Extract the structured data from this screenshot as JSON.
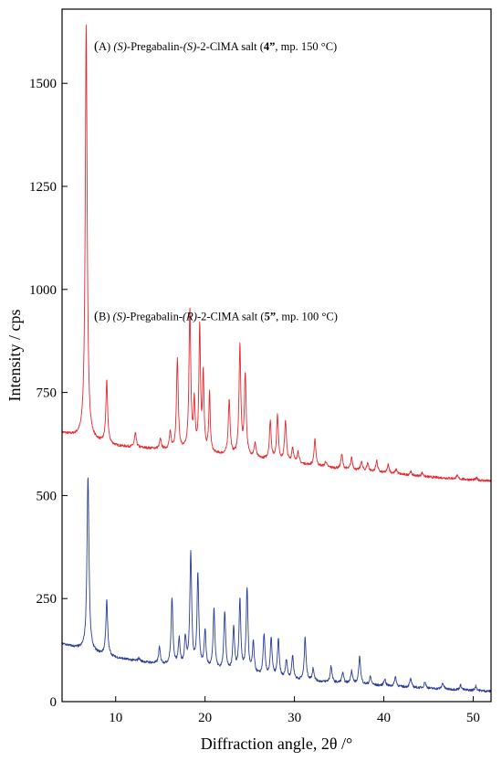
{
  "chart_data": {
    "type": "line",
    "xlabel": "Diffraction angle, 2θ /°",
    "ylabel": "Intensity / cps",
    "xlim": [
      4,
      52
    ],
    "ylim": [
      0,
      1680
    ],
    "x_ticks": [
      10,
      20,
      30,
      40,
      50
    ],
    "y_ticks": [
      0,
      250,
      500,
      750,
      1000,
      1250,
      1500
    ],
    "grid": false,
    "series": [
      {
        "color": "#e8282e",
        "baseline": [
          [
            4,
            652
          ],
          [
            6,
            640
          ],
          [
            8,
            630
          ],
          [
            10,
            620
          ],
          [
            15,
            612
          ],
          [
            20,
            602
          ],
          [
            25,
            592
          ],
          [
            30,
            578
          ],
          [
            35,
            565
          ],
          [
            40,
            555
          ],
          [
            45,
            545
          ],
          [
            50,
            538
          ],
          [
            52,
            535
          ]
        ],
        "peaks": [
          [
            6.7,
            1640,
            0.13
          ],
          [
            9.0,
            775,
            0.12
          ],
          [
            12.2,
            650,
            0.12
          ],
          [
            15.0,
            635,
            0.12
          ],
          [
            16.1,
            650,
            0.12
          ],
          [
            16.9,
            828,
            0.12
          ],
          [
            18.3,
            945,
            0.12
          ],
          [
            18.8,
            718,
            0.1
          ],
          [
            19.4,
            905,
            0.1
          ],
          [
            19.8,
            790,
            0.1
          ],
          [
            20.5,
            745,
            0.1
          ],
          [
            22.7,
            730,
            0.12
          ],
          [
            23.9,
            860,
            0.12
          ],
          [
            24.5,
            790,
            0.12
          ],
          [
            25.6,
            625,
            0.12
          ],
          [
            27.3,
            680,
            0.12
          ],
          [
            28.1,
            692,
            0.12
          ],
          [
            29.0,
            680,
            0.12
          ],
          [
            29.8,
            615,
            0.12
          ],
          [
            30.4,
            605,
            0.12
          ],
          [
            32.3,
            635,
            0.12
          ],
          [
            33.5,
            582,
            0.12
          ],
          [
            35.3,
            600,
            0.12
          ],
          [
            36.4,
            592,
            0.12
          ],
          [
            37.5,
            582,
            0.12
          ],
          [
            38.2,
            578,
            0.12
          ],
          [
            39.2,
            585,
            0.12
          ],
          [
            40.5,
            575,
            0.12
          ],
          [
            41.4,
            563,
            0.12
          ],
          [
            43.0,
            558,
            0.12
          ],
          [
            44.3,
            555,
            0.12
          ],
          [
            48.2,
            548,
            0.12
          ],
          [
            50.4,
            542,
            0.12
          ]
        ]
      },
      {
        "color": "#2a3d9a",
        "baseline": [
          [
            4,
            140
          ],
          [
            6,
            128
          ],
          [
            8,
            116
          ],
          [
            10,
            106
          ],
          [
            15,
            90
          ],
          [
            20,
            78
          ],
          [
            25,
            65
          ],
          [
            30,
            52
          ],
          [
            35,
            45
          ],
          [
            40,
            38
          ],
          [
            45,
            32
          ],
          [
            50,
            27
          ],
          [
            52,
            25
          ]
        ],
        "peaks": [
          [
            6.9,
            547,
            0.13
          ],
          [
            9.0,
            245,
            0.12
          ],
          [
            12.6,
            105,
            0.12
          ],
          [
            14.9,
            130,
            0.12
          ],
          [
            16.3,
            250,
            0.12
          ],
          [
            17.1,
            150,
            0.12
          ],
          [
            17.8,
            150,
            0.12
          ],
          [
            18.4,
            355,
            0.12
          ],
          [
            19.2,
            305,
            0.12
          ],
          [
            20.0,
            170,
            0.12
          ],
          [
            21.0,
            225,
            0.12
          ],
          [
            22.2,
            215,
            0.12
          ],
          [
            23.2,
            175,
            0.12
          ],
          [
            23.9,
            245,
            0.12
          ],
          [
            24.7,
            270,
            0.12
          ],
          [
            25.4,
            140,
            0.12
          ],
          [
            26.6,
            160,
            0.12
          ],
          [
            27.4,
            150,
            0.12
          ],
          [
            28.2,
            150,
            0.12
          ],
          [
            29.1,
            100,
            0.12
          ],
          [
            29.8,
            110,
            0.12
          ],
          [
            31.2,
            155,
            0.12
          ],
          [
            32.1,
            80,
            0.12
          ],
          [
            34.1,
            85,
            0.12
          ],
          [
            35.4,
            70,
            0.12
          ],
          [
            36.4,
            75,
            0.12
          ],
          [
            37.3,
            110,
            0.12
          ],
          [
            38.5,
            60,
            0.12
          ],
          [
            40.1,
            55,
            0.12
          ],
          [
            41.3,
            60,
            0.12
          ],
          [
            43.0,
            55,
            0.12
          ],
          [
            44.6,
            48,
            0.12
          ],
          [
            46.6,
            45,
            0.12
          ],
          [
            48.6,
            40,
            0.12
          ],
          [
            50.3,
            38,
            0.12
          ]
        ]
      }
    ],
    "annotations": [
      {
        "id": "a",
        "y": 1580,
        "open": "(",
        "prefix": "A) ",
        "parts": [
          {
            "t": "(S)",
            "s": "italic"
          },
          {
            "t": "-Pregabalin-",
            "s": ""
          },
          {
            "t": "(S)",
            "s": "italic"
          },
          {
            "t": "-2-ClMA salt (",
            "s": ""
          },
          {
            "t": "4”",
            "s": "bold"
          },
          {
            "t": ", mp. 150 °C)",
            "s": ""
          }
        ]
      },
      {
        "id": "b",
        "y": 925,
        "open": "(",
        "prefix": "B) ",
        "parts": [
          {
            "t": "(S)",
            "s": "italic"
          },
          {
            "t": "-Pregabalin-",
            "s": ""
          },
          {
            "t": "(R)",
            "s": "italic"
          },
          {
            "t": "-2-ClMA salt (",
            "s": ""
          },
          {
            "t": "5”",
            "s": "bold"
          },
          {
            "t": ", mp. 100 °C)",
            "s": ""
          }
        ]
      }
    ]
  }
}
